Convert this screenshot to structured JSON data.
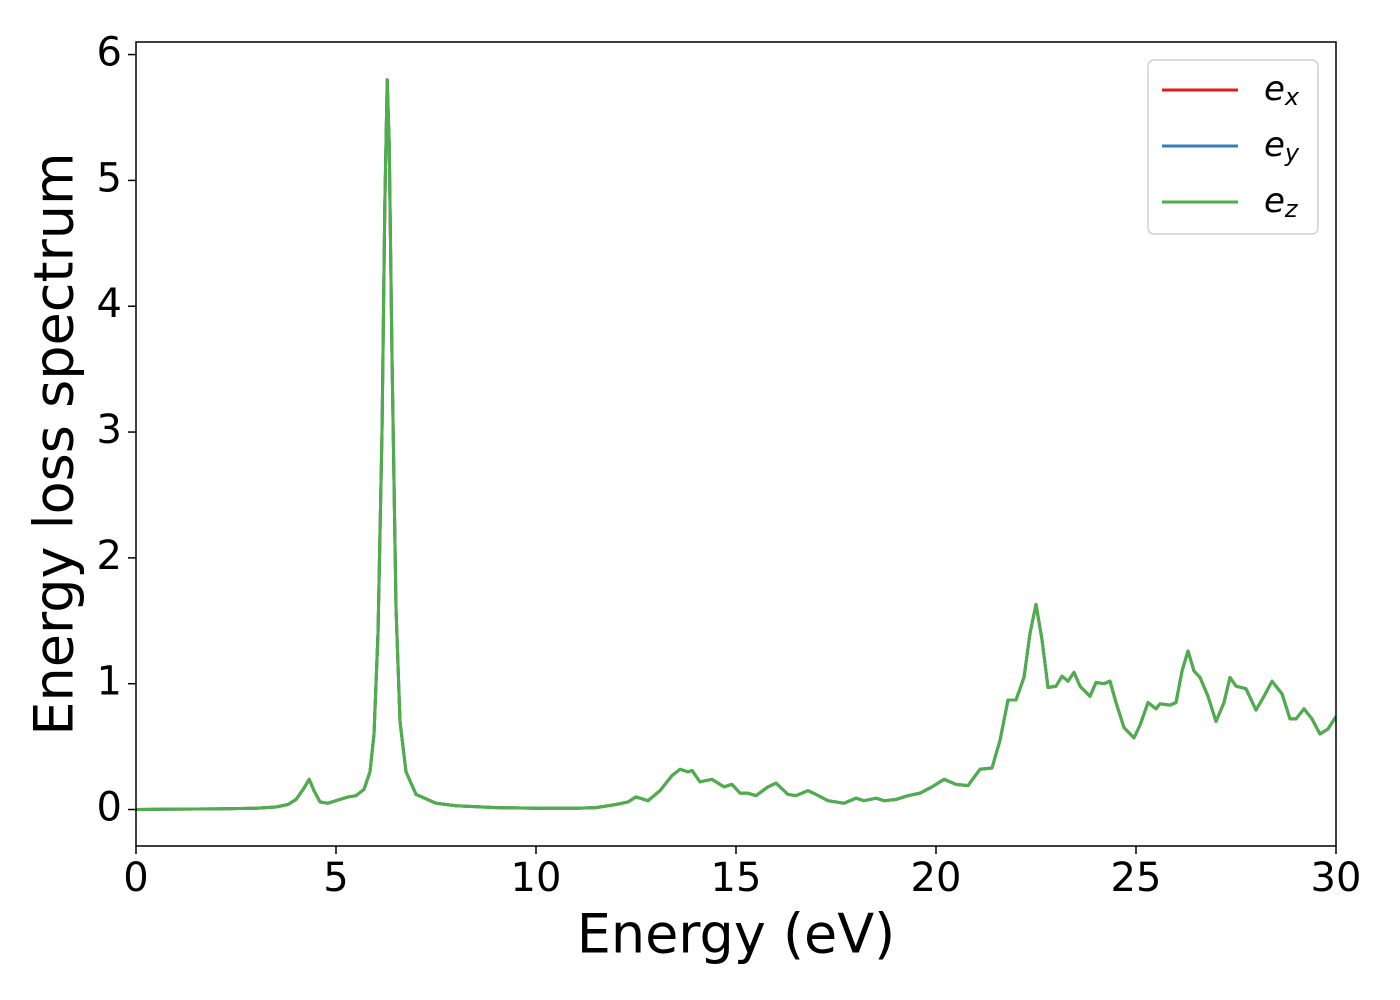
{
  "chart_data": {
    "type": "line",
    "xlabel": "Energy (eV)",
    "ylabel": "Energy loss spectrum",
    "xlim": [
      0,
      30
    ],
    "ylim": [
      -0.29,
      6.1
    ],
    "xticks": [
      0,
      5,
      10,
      15,
      20,
      25,
      30
    ],
    "yticks": [
      0,
      1,
      2,
      3,
      4,
      5,
      6
    ],
    "legend": "upper right",
    "x": [
      0,
      1,
      2,
      3,
      3.5,
      3.8,
      4.0,
      4.2,
      4.33,
      4.45,
      4.6,
      4.8,
      5.0,
      5.3,
      5.5,
      5.7,
      5.85,
      5.95,
      6.05,
      6.15,
      6.22,
      6.28,
      6.33,
      6.4,
      6.5,
      6.6,
      6.75,
      7.0,
      7.5,
      8,
      9,
      10,
      11,
      11.5,
      12,
      12.3,
      12.5,
      12.8,
      13.1,
      13.4,
      13.6,
      13.8,
      13.9,
      14.1,
      14.4,
      14.7,
      14.9,
      15.1,
      15.3,
      15.5,
      15.8,
      16.0,
      16.3,
      16.5,
      16.8,
      17.0,
      17.3,
      17.7,
      18.0,
      18.2,
      18.5,
      18.7,
      19.0,
      19.3,
      19.6,
      19.9,
      20.2,
      20.5,
      20.8,
      21.1,
      21.4,
      21.6,
      21.8,
      22.0,
      22.2,
      22.35,
      22.5,
      22.65,
      22.8,
      23.0,
      23.15,
      23.3,
      23.45,
      23.6,
      23.85,
      24.0,
      24.2,
      24.35,
      24.5,
      24.7,
      24.95,
      25.1,
      25.3,
      25.5,
      25.6,
      25.85,
      26.0,
      26.15,
      26.3,
      26.45,
      26.6,
      26.8,
      27.0,
      27.2,
      27.35,
      27.5,
      27.75,
      28.0,
      28.2,
      28.4,
      28.65,
      28.85,
      29.0,
      29.2,
      29.4,
      29.6,
      29.8,
      30
    ],
    "series": [
      {
        "name": "ex",
        "color": "#e41a1c",
        "values": [
          0,
          0.003,
          0.005,
          0.01,
          0.02,
          0.04,
          0.08,
          0.17,
          0.24,
          0.15,
          0.06,
          0.05,
          0.07,
          0.1,
          0.11,
          0.16,
          0.3,
          0.6,
          1.4,
          3.0,
          4.8,
          5.8,
          5.3,
          3.6,
          1.6,
          0.7,
          0.3,
          0.12,
          0.05,
          0.03,
          0.015,
          0.01,
          0.01,
          0.015,
          0.04,
          0.06,
          0.1,
          0.07,
          0.15,
          0.27,
          0.32,
          0.3,
          0.31,
          0.22,
          0.24,
          0.18,
          0.2,
          0.13,
          0.13,
          0.11,
          0.18,
          0.21,
          0.12,
          0.11,
          0.15,
          0.12,
          0.07,
          0.05,
          0.09,
          0.07,
          0.09,
          0.07,
          0.08,
          0.11,
          0.13,
          0.18,
          0.24,
          0.2,
          0.19,
          0.32,
          0.33,
          0.55,
          0.87,
          0.87,
          1.05,
          1.4,
          1.63,
          1.35,
          0.97,
          0.98,
          1.06,
          1.02,
          1.09,
          0.98,
          0.9,
          1.01,
          1.0,
          1.02,
          0.85,
          0.65,
          0.57,
          0.67,
          0.85,
          0.8,
          0.84,
          0.83,
          0.85,
          1.1,
          1.26,
          1.1,
          1.05,
          0.9,
          0.7,
          0.85,
          1.05,
          0.98,
          0.96,
          0.79,
          0.9,
          1.02,
          0.92,
          0.72,
          0.72,
          0.8,
          0.72,
          0.6,
          0.64,
          0.74
        ]
      },
      {
        "name": "ey",
        "color": "#377eb8",
        "values": [
          0,
          0.003,
          0.005,
          0.01,
          0.02,
          0.04,
          0.08,
          0.17,
          0.24,
          0.15,
          0.06,
          0.05,
          0.07,
          0.1,
          0.11,
          0.16,
          0.3,
          0.6,
          1.4,
          3.0,
          4.8,
          5.8,
          5.3,
          3.6,
          1.6,
          0.7,
          0.3,
          0.12,
          0.05,
          0.03,
          0.015,
          0.01,
          0.01,
          0.015,
          0.04,
          0.06,
          0.1,
          0.07,
          0.15,
          0.27,
          0.32,
          0.3,
          0.31,
          0.22,
          0.24,
          0.18,
          0.2,
          0.13,
          0.13,
          0.11,
          0.18,
          0.21,
          0.12,
          0.11,
          0.15,
          0.12,
          0.07,
          0.05,
          0.09,
          0.07,
          0.09,
          0.07,
          0.08,
          0.11,
          0.13,
          0.18,
          0.24,
          0.2,
          0.19,
          0.32,
          0.33,
          0.55,
          0.87,
          0.87,
          1.05,
          1.4,
          1.63,
          1.35,
          0.97,
          0.98,
          1.06,
          1.02,
          1.09,
          0.98,
          0.9,
          1.01,
          1.0,
          1.02,
          0.85,
          0.65,
          0.57,
          0.67,
          0.85,
          0.8,
          0.84,
          0.83,
          0.85,
          1.1,
          1.26,
          1.1,
          1.05,
          0.9,
          0.7,
          0.85,
          1.05,
          0.98,
          0.96,
          0.79,
          0.9,
          1.02,
          0.92,
          0.72,
          0.72,
          0.8,
          0.72,
          0.6,
          0.64,
          0.74
        ]
      },
      {
        "name": "ez",
        "color": "#4daf4a",
        "values": [
          0,
          0.003,
          0.005,
          0.01,
          0.02,
          0.04,
          0.08,
          0.17,
          0.24,
          0.15,
          0.06,
          0.05,
          0.07,
          0.1,
          0.11,
          0.16,
          0.3,
          0.6,
          1.4,
          3.0,
          4.8,
          5.8,
          5.3,
          3.6,
          1.6,
          0.7,
          0.3,
          0.12,
          0.05,
          0.03,
          0.015,
          0.01,
          0.01,
          0.015,
          0.04,
          0.06,
          0.1,
          0.07,
          0.15,
          0.27,
          0.32,
          0.3,
          0.31,
          0.22,
          0.24,
          0.18,
          0.2,
          0.13,
          0.13,
          0.11,
          0.18,
          0.21,
          0.12,
          0.11,
          0.15,
          0.12,
          0.07,
          0.05,
          0.09,
          0.07,
          0.09,
          0.07,
          0.08,
          0.11,
          0.13,
          0.18,
          0.24,
          0.2,
          0.19,
          0.32,
          0.33,
          0.55,
          0.87,
          0.87,
          1.05,
          1.4,
          1.63,
          1.35,
          0.97,
          0.98,
          1.06,
          1.02,
          1.09,
          0.98,
          0.9,
          1.01,
          1.0,
          1.02,
          0.85,
          0.65,
          0.57,
          0.67,
          0.85,
          0.8,
          0.84,
          0.83,
          0.85,
          1.1,
          1.26,
          1.1,
          1.05,
          0.9,
          0.7,
          0.85,
          1.05,
          0.98,
          0.96,
          0.79,
          0.9,
          1.02,
          0.92,
          0.72,
          0.72,
          0.8,
          0.72,
          0.6,
          0.64,
          0.74
        ]
      }
    ]
  }
}
